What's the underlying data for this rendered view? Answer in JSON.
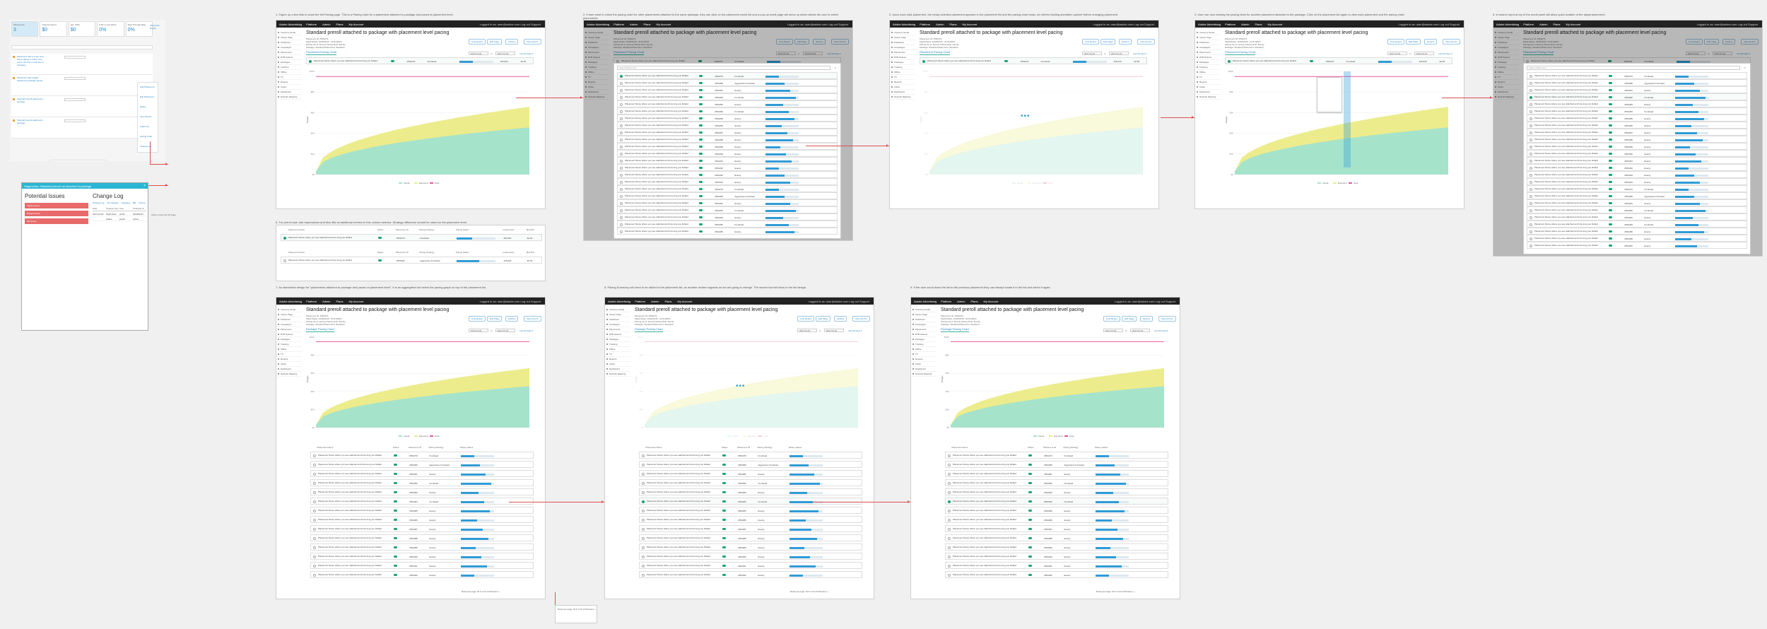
{
  "app": {
    "name": "Adobe Advertising",
    "nav": [
      "Platform",
      "Admin",
      "Plans",
      "My Account"
    ],
    "user": "Logged in as: user@adobe.com   Log out   Support"
  },
  "sidebar": [
    "Inventory Guide",
    "Viewer Page",
    "Publishers",
    "Campaigns",
    "Placements",
    "RTB Options",
    "Packages",
    "Tracking",
    "Offline",
    "TV",
    "Reports",
    "Clicks",
    "Dashboard",
    "Network Mapping"
  ],
  "page": {
    "title": "Standard preroll attached to package with placement level pacing",
    "meta_lines": [
      "Placement ID: 2563279",
      "Flight Dates: 10/26/2015 - 01/31/2016",
      "Pacing set to: Evenly  Pacing Rule: Evenly",
      "Package: Standard  Placement: Standard"
    ],
    "actions": [
      "Cost Report",
      "Edit Flags",
      "Options",
      "View Ad Info"
    ],
    "tab_placement": "Placement Pacing Chart",
    "tab_package": "Package Pacing Chart",
    "date_from": "2017-01-01",
    "date_to": "2017-01-31",
    "date_sep": "to",
    "date_range_label": "Last 30 days ▾"
  },
  "chart": {
    "ylabel": "Budget",
    "yticks": [
      "$10K",
      "$8K",
      "$6K",
      "$4K",
      "$2K",
      "$0"
    ],
    "legend": [
      "Actual",
      "Expected",
      "Goal"
    ],
    "colors": {
      "actual": "#a6e3cb",
      "expected": "#ecec8c",
      "goal": "#e8579b"
    }
  },
  "table": {
    "columns": [
      "Placement Name",
      "Status",
      "Placement ID",
      "Pacing Strategy",
      "Pacing Status",
      "Impressions",
      "Max Bid"
    ],
    "row_name": "Placement Name where you see attached and how long you bidded to view the rest of this",
    "ids": [
      "2563279",
      "2563280",
      "2563281",
      "2563282",
      "2563283",
      "2563284",
      "2563285",
      "2563286",
      "2563287",
      "2563288",
      "2563289",
      "2563290",
      "2563291",
      "2563292",
      "2563293",
      "2563294"
    ],
    "strategies": [
      "Frontload",
      "Aggressive Frontload",
      "Evenly",
      "Frontload",
      "Evenly",
      "Frontload",
      "Evenly",
      "Evenly",
      "Evenly",
      "Evenly",
      "Evenly",
      "Evenly",
      "Evenly",
      "Evenly",
      "Evenly",
      "Evenly"
    ],
    "imp": "425,620",
    "bid": "$4.50",
    "pager": "Rows per page: 10  ▾   1-10 of 243 items   ‹   ›",
    "search_placeholder": "Search Placement"
  },
  "steps": {
    "s1": "1. Figure up a few lists to show the full Pacing page. This is a Pacing chart for a placement attached to package and paced at placement level.",
    "s2": "2. If user want to check the pacing chart for other placements attached to the same package, they can click on the placement name list and a pop-up scroll page will show up which allows the user to select placements.",
    "s3": "3. Upon each click placement, the newly selected placement appears in the placement list and the pacing chart loads. An interim loading animation spinner before changing placement.",
    "s4": "4. User can now viewing the pacing chart for another placement attached to the package. Click on the placement list again to view each placement and the pacing chart.",
    "s5": "5. In search input at top of the scroll panel will allow quick location of the target placement.",
    "s6": "6. For preroll user add Impressions and Max Bid as additional metrics in this column selector. Strategy difference should be noted on the placement level.",
    "s7": "7. An alternative design for \"placements attached to package and paced on placement level\". It is an aggregation list below the pacing graph on top of the placement list.",
    "s8": "8. Pacing Summary will need to be added to the placement list, so another section appears as we are going to change. The search bar will show in the list design.",
    "s9": "9. If the user scroll down the list to the previous placement they can always locate it in the list and select it again."
  },
  "dashboard": {
    "kpis": [
      {
        "label": "Placements",
        "value": "3"
      },
      {
        "label": "Total Ad Spend",
        "value": "$0"
      },
      {
        "label": "Est. CPM",
        "value": "$0"
      },
      {
        "label": "CTR in Last Week",
        "value": "0%"
      },
      {
        "label": "Start Through Rate",
        "value": "0%"
      }
    ],
    "recommend": "Show Full Report",
    "rows": [
      "Placement with a super long name stating to show more text in one line to look how it truncates",
      "Placement with budget attached to package paced",
      "Standard preroll attached to package",
      "Standard preroll attached to package"
    ],
    "menu": [
      "Add Placement",
      "Edit Placement",
      "Delete",
      "View Report",
      "Attach Ad",
      "Pacing Chart",
      "Change Log"
    ],
    "menu_hover": "Pacing Chart"
  },
  "diag": {
    "title": "Diagnostics: Standard preroll not attached to package",
    "issues_title": "Potential Issues",
    "issues": [
      "Flights Issues",
      "Budget Issues",
      "Bid Issues"
    ],
    "log_title": "Change Log",
    "log_tabs": [
      "Change Log",
      "All Changes",
      "Targeting",
      "Bid",
      "Pacing"
    ],
    "log_cols": [
      "Date",
      "Change Type",
      "User",
      "Changed To"
    ],
    "log_rows": [
      [
        "2017-01-18",
        "Flight Date",
        "jsmith",
        "02/28/2017"
      ],
      [
        "",
        "Status",
        "jsmith",
        "Active"
      ]
    ],
    "note": "Click to open the full Page"
  }
}
